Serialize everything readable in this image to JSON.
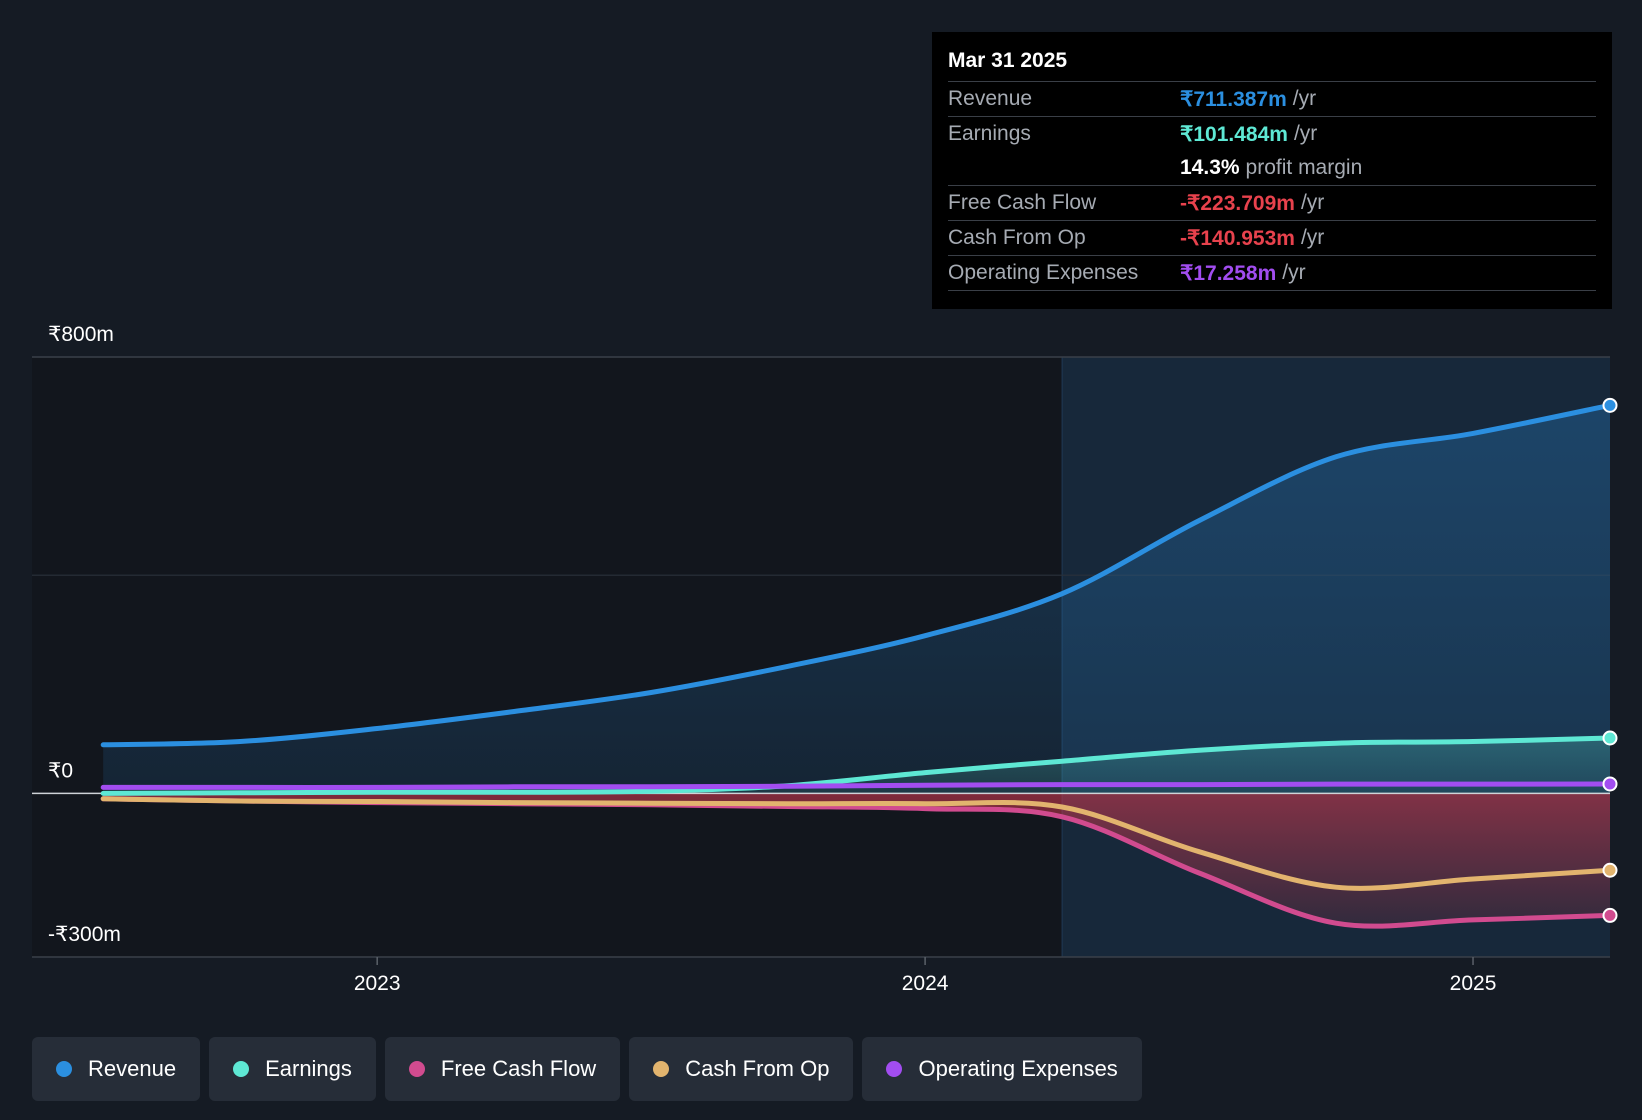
{
  "chart_data": {
    "type": "line",
    "y_axis": {
      "min": -300,
      "max": 800,
      "unit": "₹m",
      "ticks": [
        {
          "value": 800,
          "label": "₹800m"
        },
        {
          "value": 0,
          "label": "₹0"
        },
        {
          "value": -300,
          "label": "-₹300m"
        }
      ]
    },
    "x_axis": {
      "min": 2022.37,
      "max": 2025.25,
      "ticks": [
        {
          "value": 2023,
          "label": "2023"
        },
        {
          "value": 2024,
          "label": "2024"
        },
        {
          "value": 2025,
          "label": "2025"
        }
      ]
    },
    "highlight_start": 2024.25,
    "series": [
      {
        "name": "Revenue",
        "color": "#2b8fe0",
        "fill": true,
        "points": [
          [
            2022.5,
            89
          ],
          [
            2022.75,
            95
          ],
          [
            2023,
            119
          ],
          [
            2023.25,
            150
          ],
          [
            2023.5,
            185
          ],
          [
            2023.75,
            233
          ],
          [
            2024,
            289
          ],
          [
            2024.25,
            366
          ],
          [
            2024.5,
            500
          ],
          [
            2024.75,
            617
          ],
          [
            2025,
            660
          ],
          [
            2025.25,
            711.387
          ]
        ]
      },
      {
        "name": "Earnings",
        "color": "#5ee8d4",
        "fill": true,
        "points": [
          [
            2022.5,
            0
          ],
          [
            2022.75,
            1
          ],
          [
            2023,
            2
          ],
          [
            2023.25,
            2
          ],
          [
            2023.5,
            4
          ],
          [
            2023.75,
            14
          ],
          [
            2024,
            38
          ],
          [
            2024.25,
            59
          ],
          [
            2024.5,
            79
          ],
          [
            2024.75,
            92
          ],
          [
            2025,
            95
          ],
          [
            2025.25,
            101.484
          ]
        ]
      },
      {
        "name": "Free Cash Flow",
        "color": "#d14b8f",
        "fill": true,
        "points": [
          [
            2022.5,
            -10
          ],
          [
            2022.75,
            -14
          ],
          [
            2023,
            -17
          ],
          [
            2023.25,
            -19
          ],
          [
            2023.5,
            -21
          ],
          [
            2023.75,
            -24
          ],
          [
            2024,
            -28
          ],
          [
            2024.25,
            -43
          ],
          [
            2024.5,
            -146
          ],
          [
            2024.75,
            -238
          ],
          [
            2025,
            -232
          ],
          [
            2025.25,
            -223.709
          ]
        ]
      },
      {
        "name": "Cash From Op",
        "color": "#e2b46e",
        "fill": false,
        "points": [
          [
            2022.5,
            -10
          ],
          [
            2022.75,
            -14
          ],
          [
            2023,
            -15
          ],
          [
            2023.25,
            -17
          ],
          [
            2023.5,
            -18
          ],
          [
            2023.75,
            -19
          ],
          [
            2024,
            -19
          ],
          [
            2024.25,
            -25
          ],
          [
            2024.5,
            -107
          ],
          [
            2024.75,
            -172
          ],
          [
            2025,
            -157
          ],
          [
            2025.25,
            -140.953
          ]
        ]
      },
      {
        "name": "Operating Expenses",
        "color": "#a24df0",
        "fill": false,
        "points": [
          [
            2022.5,
            11
          ],
          [
            2022.75,
            11
          ],
          [
            2023,
            11
          ],
          [
            2023.25,
            12
          ],
          [
            2023.5,
            12
          ],
          [
            2023.75,
            13
          ],
          [
            2024,
            15
          ],
          [
            2024.25,
            16
          ],
          [
            2024.5,
            16
          ],
          [
            2024.75,
            17
          ],
          [
            2025,
            17
          ],
          [
            2025.25,
            17.258
          ]
        ]
      }
    ]
  },
  "tooltip": {
    "date": "Mar 31 2025",
    "rows": [
      {
        "label": "Revenue",
        "value": "₹711.387m",
        "unit": "/yr",
        "color": "#2b8fe0"
      },
      {
        "label": "Earnings",
        "value": "₹101.484m",
        "unit": "/yr",
        "color": "#5ee8d4"
      },
      {
        "label": "",
        "value": "14.3%",
        "unit": "profit margin",
        "color": "#ffffff"
      },
      {
        "label": "Free Cash Flow",
        "value": "-₹223.709m",
        "unit": "/yr",
        "color": "#e8424d"
      },
      {
        "label": "Cash From Op",
        "value": "-₹140.953m",
        "unit": "/yr",
        "color": "#e8424d"
      },
      {
        "label": "Operating Expenses",
        "value": "₹17.258m",
        "unit": "/yr",
        "color": "#a24df0"
      }
    ]
  },
  "legend": [
    {
      "label": "Revenue",
      "color": "#2b8fe0"
    },
    {
      "label": "Earnings",
      "color": "#5ee8d4"
    },
    {
      "label": "Free Cash Flow",
      "color": "#d14b8f"
    },
    {
      "label": "Cash From Op",
      "color": "#e2b46e"
    },
    {
      "label": "Operating Expenses",
      "color": "#a24df0"
    }
  ]
}
